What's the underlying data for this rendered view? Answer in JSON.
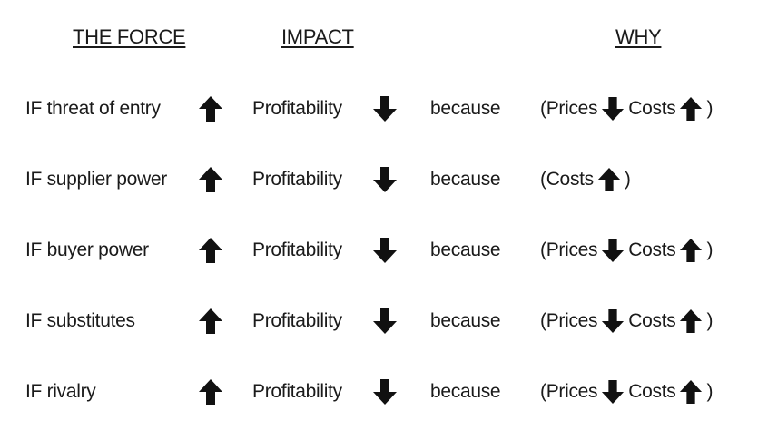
{
  "headers": {
    "force": "THE FORCE",
    "impact": "IMPACT",
    "why": "WHY"
  },
  "rows": [
    {
      "force": "IF threat of entry",
      "force_arrow": "up-arrow-icon",
      "impact": "Profitability",
      "impact_arrow": "down-arrow-icon",
      "because": "because",
      "why_open": "(Prices",
      "why_arrow1": "down-arrow-icon",
      "why_mid": "Costs",
      "why_arrow2": "up-arrow-icon",
      "why_close": ")"
    },
    {
      "force": "IF supplier power",
      "force_arrow": "up-arrow-icon",
      "impact": "Profitability",
      "impact_arrow": "down-arrow-icon",
      "because": "because",
      "why_open": "(Costs",
      "why_arrow1": "up-arrow-icon",
      "why_close": ")"
    },
    {
      "force": "IF buyer power",
      "force_arrow": "up-arrow-icon",
      "impact": "Profitability",
      "impact_arrow": "down-arrow-icon",
      "because": "because",
      "why_open": "(Prices",
      "why_arrow1": "down-arrow-icon",
      "why_mid": "Costs",
      "why_arrow2": "up-arrow-icon",
      "why_close": ")"
    },
    {
      "force": "IF substitutes",
      "force_arrow": "up-arrow-icon",
      "impact": "Profitability",
      "impact_arrow": "down-arrow-icon",
      "because": "because",
      "why_open": "(Prices",
      "why_arrow1": "down-arrow-icon",
      "why_mid": "Costs",
      "why_arrow2": "up-arrow-icon",
      "why_close": ")"
    },
    {
      "force": "IF rivalry",
      "force_arrow": "up-arrow-icon",
      "impact": "Profitability",
      "impact_arrow": "down-arrow-icon",
      "because": "because",
      "why_open": "(Prices",
      "why_arrow1": "down-arrow-icon",
      "why_mid": "Costs",
      "why_arrow2": "up-arrow-icon",
      "why_close": ")"
    }
  ]
}
